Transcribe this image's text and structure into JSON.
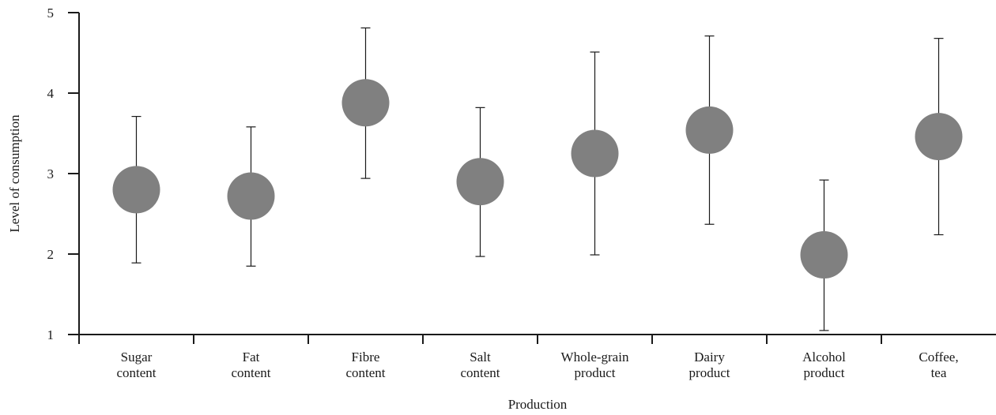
{
  "chart_data": {
    "type": "scatter",
    "title": "",
    "xlabel": "Production",
    "ylabel": "Level of consumption",
    "ylim": [
      1,
      5
    ],
    "yticks": [
      1,
      2,
      3,
      4,
      5
    ],
    "grid": false,
    "marker_color": "#808080",
    "categories": [
      [
        "Sugar",
        "content"
      ],
      [
        "Fat",
        "content"
      ],
      [
        "Fibre",
        "content"
      ],
      [
        "Salt",
        "content"
      ],
      [
        "Whole-grain",
        "product"
      ],
      [
        "Dairy",
        "product"
      ],
      [
        "Alcohol",
        "product"
      ],
      [
        "Coffee,",
        "tea"
      ]
    ],
    "series": [
      {
        "values": [
          2.8,
          2.72,
          3.88,
          2.9,
          3.25,
          3.54,
          1.99,
          3.46
        ],
        "error_low": [
          1.89,
          1.85,
          2.94,
          1.97,
          1.99,
          2.37,
          1.05,
          2.24
        ],
        "error_high": [
          3.71,
          3.58,
          4.81,
          3.82,
          4.51,
          4.71,
          2.92,
          4.68
        ]
      }
    ]
  }
}
